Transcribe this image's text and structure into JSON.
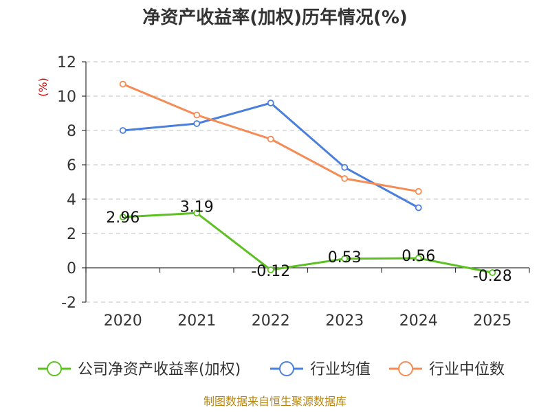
{
  "chart_data": {
    "type": "line",
    "title": "净资产收益率(加权)历年情况(%)",
    "ylabel": "(%)",
    "xlabel": "",
    "categories": [
      "2020",
      "2021",
      "2022",
      "2023",
      "2024",
      "2025"
    ],
    "ylim": [
      -2,
      12
    ],
    "yticks": [
      -2,
      0,
      2,
      4,
      6,
      8,
      10,
      12
    ],
    "grid": true,
    "legend_position": "bottom",
    "series": [
      {
        "name": "公司净资产收益率(加权)",
        "color": "#5dc021",
        "values": [
          2.96,
          3.19,
          -0.12,
          0.53,
          0.56,
          -0.28
        ],
        "labels": [
          "2.96",
          "3.19",
          "-0.12",
          "0.53",
          "0.56",
          "-0.28"
        ],
        "show_labels": true
      },
      {
        "name": "行业均值",
        "color": "#4a7fdb",
        "values": [
          8.0,
          8.4,
          9.6,
          5.85,
          3.5,
          null
        ],
        "show_labels": false
      },
      {
        "name": "行业中位数",
        "color": "#f58b55",
        "values": [
          10.7,
          8.9,
          7.5,
          5.2,
          4.45,
          null
        ],
        "show_labels": false
      }
    ],
    "source": "制图数据来自恒生聚源数据库"
  }
}
